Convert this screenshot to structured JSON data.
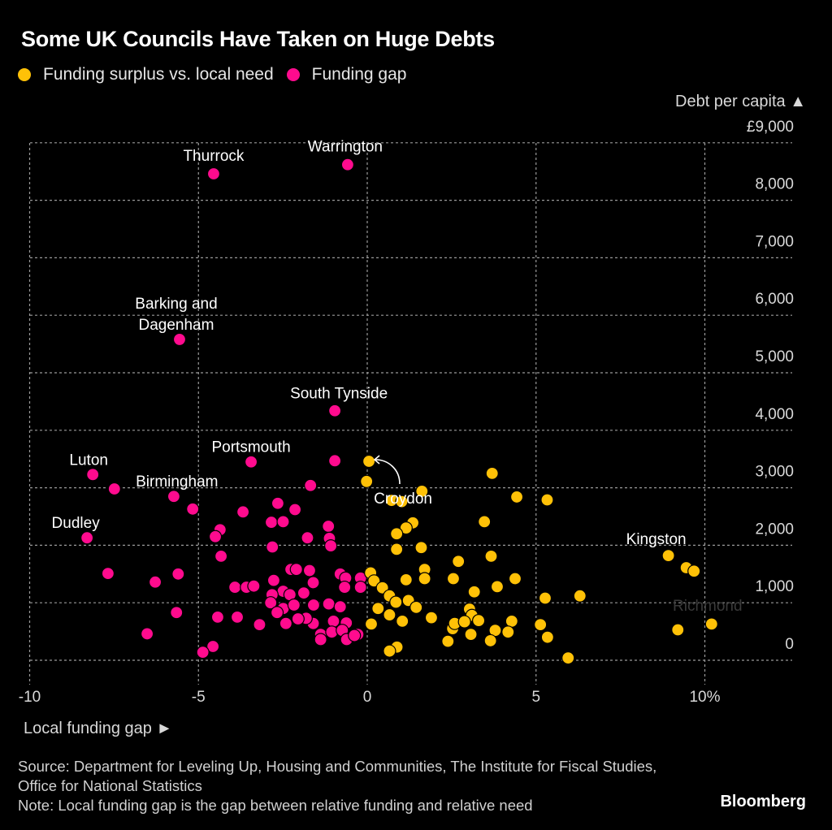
{
  "title": "Some UK Councils Have Taken on Huge Debts",
  "legend": [
    {
      "label": "Funding surplus vs. local need",
      "color": "#FFC107"
    },
    {
      "label": "Funding gap",
      "color": "#FF0B8E"
    }
  ],
  "y_axis_title": "Debt per capita ▲",
  "x_axis_title": "Local funding gap ►",
  "footer": {
    "source": "Source: Department for Leveling Up, Housing and Communities, The Institute for Fiscal Studies, Office for National Statistics",
    "note": "Note: Local funding gap is the gap between relative funding and relative need"
  },
  "brand": "Bloomberg",
  "chart_data": {
    "type": "scatter",
    "title": "Some UK Councils Have Taken on Huge Debts",
    "xlabel": "Local funding gap",
    "ylabel": "Debt per capita",
    "xlim": [
      -10,
      12.5
    ],
    "ylim": [
      0,
      9000
    ],
    "x_ticks": [
      -10,
      -5,
      0,
      5,
      10
    ],
    "x_tick_labels": [
      "-10",
      "-5",
      "0",
      "5",
      "10%"
    ],
    "y_ticks": [
      0,
      1000,
      2000,
      3000,
      4000,
      5000,
      6000,
      7000,
      8000,
      9000
    ],
    "y_tick_labels": [
      "0",
      "1,000",
      "2,000",
      "3,000",
      "4,000",
      "5,000",
      "6,000",
      "7,000",
      "8,000",
      "£9,000"
    ],
    "grid": true,
    "legend_position": "top-left",
    "colors": {
      "surplus": "#FFC107",
      "gap": "#FF0B8E"
    },
    "annotations": [
      {
        "text": "Thurrock",
        "x": -4.55,
        "y": 8460
      },
      {
        "text": "Warrington",
        "x": -0.58,
        "y": 8620
      },
      {
        "text": "Barking and Dagenham",
        "x": -5.56,
        "y": 5580
      },
      {
        "text": "South Tynside",
        "x": -0.96,
        "y": 4340
      },
      {
        "text": "Portsmouth",
        "x": -3.44,
        "y": 3450
      },
      {
        "text": "Luton",
        "x": -8.13,
        "y": 3230
      },
      {
        "text": "Birmingham",
        "x": -7.49,
        "y": 2980
      },
      {
        "text": "Dudley",
        "x": -8.3,
        "y": 2130
      },
      {
        "text": "Croydon",
        "x": 0.05,
        "y": 3460
      },
      {
        "text": "Kingston",
        "x": 8.92,
        "y": 1820
      },
      {
        "text": "Richmond",
        "x": 10.2,
        "y": 620
      }
    ],
    "series": [
      {
        "name": "Funding gap",
        "color": "#FF0B8E",
        "points": [
          [
            -4.55,
            8460
          ],
          [
            -0.58,
            8620
          ],
          [
            -5.56,
            5580
          ],
          [
            -0.96,
            4340
          ],
          [
            -3.44,
            3450
          ],
          [
            -0.96,
            3470
          ],
          [
            -8.13,
            3230
          ],
          [
            -7.49,
            2980
          ],
          [
            -1.68,
            3040
          ],
          [
            -5.73,
            2850
          ],
          [
            -5.17,
            2630
          ],
          [
            -2.65,
            2730
          ],
          [
            -2.14,
            2620
          ],
          [
            -3.68,
            2580
          ],
          [
            -2.84,
            2400
          ],
          [
            -2.49,
            2410
          ],
          [
            -4.36,
            2270
          ],
          [
            -4.5,
            2150
          ],
          [
            -1.15,
            2330
          ],
          [
            -1.77,
            2130
          ],
          [
            -1.12,
            2120
          ],
          [
            -8.3,
            2130
          ],
          [
            -1.08,
            1990
          ],
          [
            -2.81,
            1970
          ],
          [
            -4.33,
            1810
          ],
          [
            -7.68,
            1510
          ],
          [
            -6.28,
            1360
          ],
          [
            -5.6,
            1500
          ],
          [
            -3.92,
            1270
          ],
          [
            -3.58,
            1270
          ],
          [
            -3.36,
            1290
          ],
          [
            -2.77,
            1390
          ],
          [
            -2.26,
            1580
          ],
          [
            -2.1,
            1580
          ],
          [
            -1.71,
            1560
          ],
          [
            -1.6,
            1350
          ],
          [
            -1.88,
            1170
          ],
          [
            -2.49,
            1200
          ],
          [
            -2.29,
            1140
          ],
          [
            -2.82,
            1140
          ],
          [
            -0.8,
            1500
          ],
          [
            -0.64,
            1430
          ],
          [
            -0.2,
            1430
          ],
          [
            -0.67,
            1270
          ],
          [
            -0.2,
            1270
          ],
          [
            -2.86,
            1000
          ],
          [
            -2.49,
            900
          ],
          [
            -2.17,
            960
          ],
          [
            -1.59,
            960
          ],
          [
            -1.14,
            980
          ],
          [
            -0.8,
            930
          ],
          [
            -1.0,
            680
          ],
          [
            -0.62,
            650
          ],
          [
            -1.6,
            640
          ],
          [
            -1.81,
            730
          ],
          [
            -2.41,
            640
          ],
          [
            -2.05,
            720
          ],
          [
            -2.67,
            830
          ],
          [
            -3.19,
            620
          ],
          [
            -3.85,
            750
          ],
          [
            -4.43,
            750
          ],
          [
            -5.65,
            830
          ],
          [
            -1.38,
            450
          ],
          [
            -1.38,
            360
          ],
          [
            -1.05,
            490
          ],
          [
            -0.74,
            520
          ],
          [
            -0.61,
            360
          ],
          [
            -0.28,
            450
          ],
          [
            -0.38,
            430
          ],
          [
            -6.52,
            460
          ],
          [
            -4.57,
            240
          ],
          [
            -4.87,
            140
          ]
        ]
      },
      {
        "name": "Funding surplus vs. local need",
        "color": "#FFC107",
        "points": [
          [
            0.05,
            3460
          ],
          [
            -0.02,
            3110
          ],
          [
            1.62,
            2940
          ],
          [
            3.7,
            3250
          ],
          [
            4.43,
            2840
          ],
          [
            5.33,
            2790
          ],
          [
            0.72,
            2780
          ],
          [
            1.02,
            2760
          ],
          [
            1.35,
            2390
          ],
          [
            1.15,
            2300
          ],
          [
            3.47,
            2410
          ],
          [
            0.87,
            2200
          ],
          [
            0.87,
            1930
          ],
          [
            1.6,
            1960
          ],
          [
            2.7,
            1720
          ],
          [
            3.67,
            1810
          ],
          [
            2.55,
            1420
          ],
          [
            1.7,
            1580
          ],
          [
            1.7,
            1420
          ],
          [
            1.15,
            1400
          ],
          [
            4.38,
            1420
          ],
          [
            3.85,
            1280
          ],
          [
            0.1,
            1520
          ],
          [
            0.2,
            1380
          ],
          [
            0.45,
            1260
          ],
          [
            0.66,
            1120
          ],
          [
            0.85,
            1010
          ],
          [
            1.22,
            1040
          ],
          [
            0.32,
            900
          ],
          [
            0.66,
            790
          ],
          [
            1.04,
            680
          ],
          [
            1.45,
            920
          ],
          [
            1.9,
            740
          ],
          [
            3.17,
            1190
          ],
          [
            3.03,
            890
          ],
          [
            3.1,
            780
          ],
          [
            2.53,
            550
          ],
          [
            2.59,
            640
          ],
          [
            2.88,
            670
          ],
          [
            3.3,
            690
          ],
          [
            2.39,
            330
          ],
          [
            3.07,
            450
          ],
          [
            3.79,
            520
          ],
          [
            3.65,
            340
          ],
          [
            4.28,
            680
          ],
          [
            4.17,
            490
          ],
          [
            5.27,
            1080
          ],
          [
            6.3,
            1120
          ],
          [
            5.13,
            620
          ],
          [
            5.34,
            400
          ],
          [
            0.12,
            630
          ],
          [
            0.88,
            230
          ],
          [
            0.66,
            160
          ],
          [
            5.95,
            40
          ],
          [
            8.92,
            1820
          ],
          [
            9.45,
            1610
          ],
          [
            9.68,
            1550
          ],
          [
            9.2,
            530
          ],
          [
            10.2,
            630
          ]
        ]
      }
    ]
  }
}
